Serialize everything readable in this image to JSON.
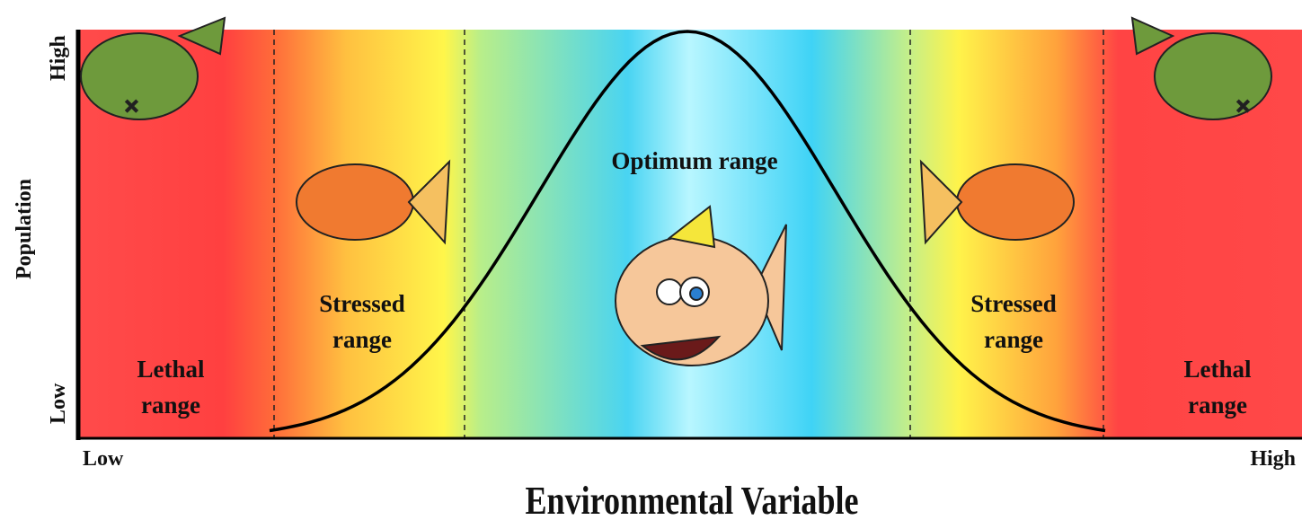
{
  "axes": {
    "y_title": "Population",
    "y_high": "High",
    "y_low": "Low",
    "x_low": "Low",
    "x_high": "High",
    "x_title": "Environmental Variable"
  },
  "zones": [
    {
      "lines": [
        "Lethal",
        "range"
      ]
    },
    {
      "lines": [
        "Stressed",
        "range"
      ]
    },
    {
      "lines": [
        "Optimum range"
      ]
    },
    {
      "lines": [
        "Stressed",
        "range"
      ]
    },
    {
      "lines": [
        "Lethal",
        "range"
      ]
    }
  ]
}
